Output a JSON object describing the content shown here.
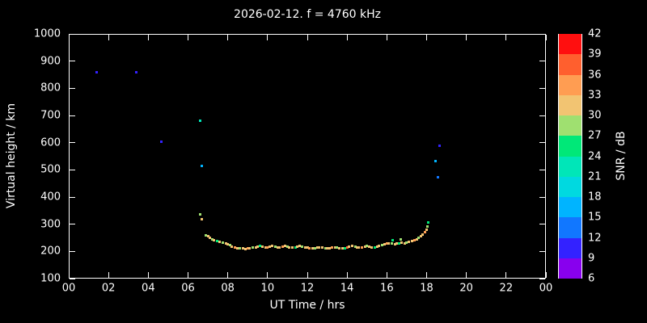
{
  "title": "2026-02-12. f = 4760 kHz",
  "chart_data": {
    "type": "scatter",
    "title": "2026-02-12. f = 4760 kHz",
    "xlabel": "UT Time / hrs",
    "ylabel": "Virtual height / km",
    "cblabel": "SNR / dB",
    "xlim": [
      0,
      24
    ],
    "ylim": [
      100,
      1000
    ],
    "background": "#000000",
    "foreground": "#ffffff",
    "grid": false,
    "x_ticks": [
      {
        "v": 0,
        "label": "00"
      },
      {
        "v": 2,
        "label": "02"
      },
      {
        "v": 4,
        "label": "04"
      },
      {
        "v": 6,
        "label": "06"
      },
      {
        "v": 8,
        "label": "08"
      },
      {
        "v": 10,
        "label": "10"
      },
      {
        "v": 12,
        "label": "12"
      },
      {
        "v": 14,
        "label": "14"
      },
      {
        "v": 16,
        "label": "16"
      },
      {
        "v": 18,
        "label": "18"
      },
      {
        "v": 20,
        "label": "20"
      },
      {
        "v": 22,
        "label": "22"
      },
      {
        "v": 24,
        "label": "00"
      }
    ],
    "y_ticks": [
      {
        "v": 100,
        "label": "100"
      },
      {
        "v": 200,
        "label": "200"
      },
      {
        "v": 300,
        "label": "300"
      },
      {
        "v": 400,
        "label": "400"
      },
      {
        "v": 500,
        "label": "500"
      },
      {
        "v": 600,
        "label": "600"
      },
      {
        "v": 700,
        "label": "700"
      },
      {
        "v": 800,
        "label": "800"
      },
      {
        "v": 900,
        "label": "900"
      },
      {
        "v": 1000,
        "label": "1000"
      }
    ],
    "colorbar": {
      "ticks": [
        6,
        9,
        12,
        15,
        18,
        21,
        24,
        27,
        30,
        33,
        36,
        39,
        42
      ],
      "min": 6,
      "max": 42,
      "segments": [
        {
          "from": 6,
          "to": 9,
          "color": "#8800ee"
        },
        {
          "from": 9,
          "to": 12,
          "color": "#3322ff"
        },
        {
          "from": 12,
          "to": 15,
          "color": "#1177ff"
        },
        {
          "from": 15,
          "to": 18,
          "color": "#00b4ff"
        },
        {
          "from": 18,
          "to": 21,
          "color": "#00d9e0"
        },
        {
          "from": 21,
          "to": 24,
          "color": "#00e6b8"
        },
        {
          "from": 24,
          "to": 27,
          "color": "#00e878"
        },
        {
          "from": 27,
          "to": 30,
          "color": "#9fe070"
        },
        {
          "from": 30,
          "to": 33,
          "color": "#f2c472"
        },
        {
          "from": 33,
          "to": 36,
          "color": "#ff9d52"
        },
        {
          "from": 36,
          "to": 39,
          "color": "#ff5f2e"
        },
        {
          "from": 39,
          "to": 42,
          "color": "#ff0f0f"
        }
      ]
    },
    "points_format": [
      "ut_hours",
      "virtual_height_km",
      "snr_db"
    ],
    "points": [
      [
        1.4,
        858,
        11
      ],
      [
        3.4,
        860,
        11
      ],
      [
        4.65,
        604,
        12
      ],
      [
        6.6,
        680,
        24
      ],
      [
        6.7,
        515,
        18
      ],
      [
        6.62,
        335,
        30
      ],
      [
        6.68,
        318,
        33
      ],
      [
        6.9,
        260,
        30
      ],
      [
        7.0,
        255,
        33
      ],
      [
        7.1,
        250,
        33
      ],
      [
        7.2,
        245,
        30
      ],
      [
        7.3,
        240,
        33
      ],
      [
        7.45,
        238,
        27
      ],
      [
        7.6,
        235,
        33
      ],
      [
        7.75,
        232,
        30
      ],
      [
        7.9,
        228,
        33
      ],
      [
        8.0,
        225,
        33
      ],
      [
        8.1,
        222,
        30
      ],
      [
        8.2,
        218,
        33
      ],
      [
        8.35,
        215,
        36
      ],
      [
        8.5,
        212,
        33
      ],
      [
        8.6,
        210,
        30
      ],
      [
        8.75,
        210,
        33
      ],
      [
        8.9,
        208,
        33
      ],
      [
        9.0,
        210,
        36
      ],
      [
        9.1,
        212,
        33
      ],
      [
        9.25,
        215,
        30
      ],
      [
        9.4,
        215,
        33
      ],
      [
        9.5,
        218,
        33
      ],
      [
        9.6,
        220,
        27
      ],
      [
        9.75,
        218,
        33
      ],
      [
        9.9,
        215,
        33
      ],
      [
        10.0,
        215,
        36
      ],
      [
        10.1,
        218,
        33
      ],
      [
        10.25,
        220,
        33
      ],
      [
        10.4,
        218,
        30
      ],
      [
        10.5,
        215,
        33
      ],
      [
        10.6,
        215,
        33
      ],
      [
        10.75,
        218,
        36
      ],
      [
        10.9,
        220,
        33
      ],
      [
        11.0,
        218,
        30
      ],
      [
        11.1,
        215,
        33
      ],
      [
        11.25,
        213,
        33
      ],
      [
        11.4,
        215,
        27
      ],
      [
        11.5,
        218,
        33
      ],
      [
        11.6,
        220,
        33
      ],
      [
        11.75,
        218,
        30
      ],
      [
        11.9,
        215,
        33
      ],
      [
        12.0,
        213,
        33
      ],
      [
        12.1,
        212,
        36
      ],
      [
        12.25,
        210,
        33
      ],
      [
        12.4,
        212,
        30
      ],
      [
        12.5,
        215,
        33
      ],
      [
        12.6,
        215,
        33
      ],
      [
        12.75,
        213,
        33
      ],
      [
        12.9,
        210,
        30
      ],
      [
        13.0,
        210,
        33
      ],
      [
        13.1,
        212,
        33
      ],
      [
        13.25,
        215,
        36
      ],
      [
        13.4,
        215,
        33
      ],
      [
        13.5,
        213,
        30
      ],
      [
        13.6,
        210,
        33
      ],
      [
        13.75,
        210,
        33
      ],
      [
        13.9,
        212,
        27
      ],
      [
        14.0,
        215,
        39
      ],
      [
        14.1,
        218,
        33
      ],
      [
        14.25,
        220,
        33
      ],
      [
        14.4,
        218,
        30
      ],
      [
        14.5,
        215,
        33
      ],
      [
        14.6,
        213,
        33
      ],
      [
        14.75,
        215,
        36
      ],
      [
        14.9,
        218,
        33
      ],
      [
        15.0,
        220,
        30
      ],
      [
        15.1,
        218,
        33
      ],
      [
        15.25,
        215,
        33
      ],
      [
        15.4,
        215,
        27
      ],
      [
        15.5,
        218,
        33
      ],
      [
        15.6,
        220,
        33
      ],
      [
        15.75,
        222,
        30
      ],
      [
        15.9,
        225,
        33
      ],
      [
        16.0,
        228,
        36
      ],
      [
        16.1,
        230,
        33
      ],
      [
        16.25,
        228,
        30
      ],
      [
        16.3,
        240,
        27
      ],
      [
        16.4,
        225,
        33
      ],
      [
        16.5,
        228,
        33
      ],
      [
        16.6,
        230,
        27
      ],
      [
        16.7,
        245,
        30
      ],
      [
        16.75,
        232,
        33
      ],
      [
        16.9,
        230,
        33
      ],
      [
        17.0,
        232,
        30
      ],
      [
        17.1,
        235,
        33
      ],
      [
        17.25,
        238,
        33
      ],
      [
        17.4,
        240,
        36
      ],
      [
        17.5,
        245,
        33
      ],
      [
        17.6,
        250,
        30
      ],
      [
        17.7,
        255,
        33
      ],
      [
        17.8,
        262,
        33
      ],
      [
        17.9,
        270,
        36
      ],
      [
        18.0,
        280,
        33
      ],
      [
        18.05,
        292,
        30
      ],
      [
        18.1,
        305,
        27
      ],
      [
        18.45,
        532,
        18
      ],
      [
        18.55,
        474,
        15
      ],
      [
        18.65,
        588,
        12
      ]
    ]
  }
}
